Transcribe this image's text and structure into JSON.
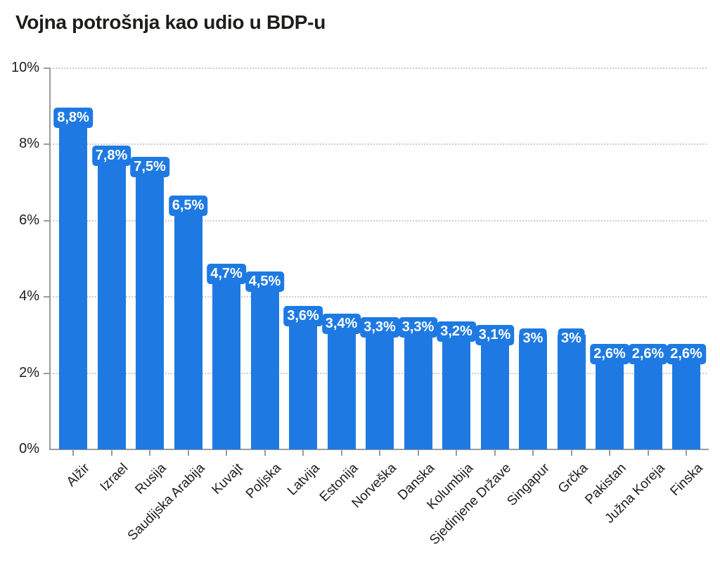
{
  "chart_data": {
    "type": "bar",
    "title": "Vojna potrošnja kao udio u BDP-u",
    "categories": [
      "Alžir",
      "Izrael",
      "Rusija",
      "Saudijska Arabija",
      "Kuvajt",
      "Poljska",
      "Latvija",
      "Estonija",
      "Norveška",
      "Danska",
      "Kolumbija",
      "Sjedinjene Države",
      "Singapur",
      "Grčka",
      "Pakistan",
      "Južna Koreja",
      "Finska"
    ],
    "values": [
      8.8,
      7.8,
      7.5,
      6.5,
      4.7,
      4.5,
      3.6,
      3.4,
      3.3,
      3.3,
      3.2,
      3.1,
      3.0,
      3.0,
      2.6,
      2.6,
      2.6
    ],
    "value_labels": [
      "8,8%",
      "7,8%",
      "7,5%",
      "6,5%",
      "4,7%",
      "4,5%",
      "3,6%",
      "3,4%",
      "3,3%",
      "3,3%",
      "3,2%",
      "3,1%",
      "3%",
      "3%",
      "2,6%",
      "2,6%",
      "2,6%"
    ],
    "xlabel": "",
    "ylabel": "",
    "ylim": [
      0,
      10
    ],
    "ytick_labels": [
      "0%",
      "2%",
      "4%",
      "6%",
      "8%",
      "10%"
    ],
    "grid": "horizontal-dotted",
    "legend": "none",
    "colors": {
      "bar": "#1e7ae2",
      "value_label_text": "#ffffff",
      "value_label_background": "#1e7ae2",
      "axis": "#9b9b9b",
      "gridline": "#cccccc",
      "text": "#1d1d1b",
      "background": "#ffffff"
    }
  }
}
